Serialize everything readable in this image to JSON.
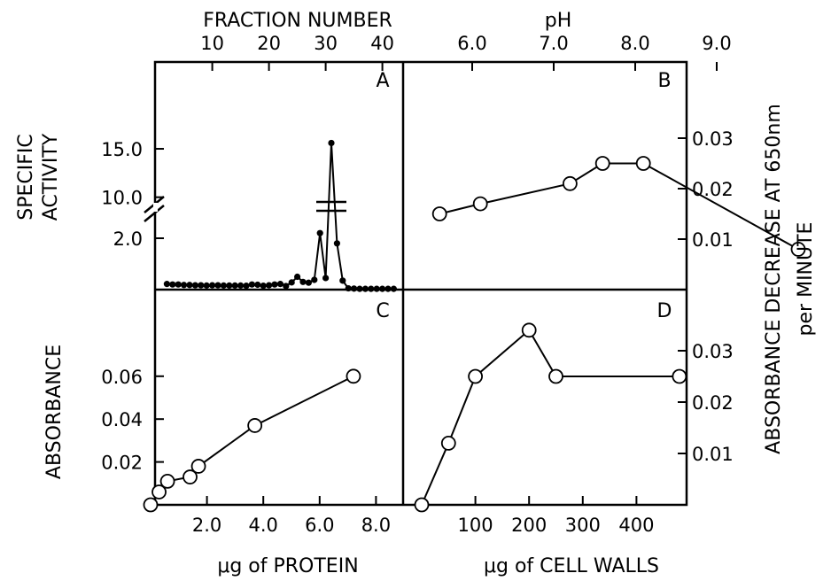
{
  "figure": {
    "top_left_title": "FRACTION NUMBER",
    "top_right_title": "pH",
    "left_top_label_1": "SPECIFIC",
    "left_top_label_2": "ACTIVITY",
    "left_bottom_label": "ABSORBANCE",
    "right_label_1": "ABSORBANCE DECREASE AT 650nm",
    "right_label_2": "per MINUTE",
    "bottom_left_label": "μg of PROTEIN",
    "bottom_right_label": "μg of CELL WALLS",
    "colors": {
      "line": "#000000",
      "open_marker_fill": "#ffffff",
      "filled_marker": "#000000"
    }
  },
  "chart_data": [
    {
      "panel": "A",
      "type": "line",
      "marker": "filled-circle",
      "xlabel": "FRACTION NUMBER",
      "ylabel": "SPECIFIC ACTIVITY",
      "x_ticks": [
        "10",
        "20",
        "30",
        "40"
      ],
      "y_ticks": [
        "2.0",
        "10.0",
        "15.0"
      ],
      "y_axis_break": true,
      "x": [
        2,
        3,
        4,
        5,
        6,
        7,
        8,
        9,
        10,
        11,
        12,
        13,
        14,
        15,
        16,
        17,
        18,
        19,
        20,
        21,
        22,
        23,
        24,
        25,
        26,
        27,
        28,
        29,
        30,
        31,
        32,
        33,
        34,
        35,
        36,
        37,
        38,
        39,
        40,
        41,
        42
      ],
      "y": [
        0.22,
        0.2,
        0.2,
        0.18,
        0.18,
        0.17,
        0.17,
        0.16,
        0.17,
        0.17,
        0.16,
        0.16,
        0.16,
        0.16,
        0.15,
        0.2,
        0.19,
        0.15,
        0.17,
        0.2,
        0.22,
        0.14,
        0.28,
        0.5,
        0.3,
        0.27,
        0.38,
        2.2,
        0.45,
        15.6,
        1.8,
        0.35,
        0.05,
        0.04,
        0.03,
        0.03,
        0.03,
        0.03,
        0.03,
        0.03,
        0.03
      ]
    },
    {
      "panel": "B",
      "type": "line",
      "marker": "open-circle",
      "xlabel": "pH",
      "ylabel": "ABSORBANCE DECREASE AT 650nm per MINUTE",
      "x_ticks": [
        "6.0",
        "7.0",
        "8.0",
        "9.0"
      ],
      "y_ticks": [
        "0.01",
        "0.02",
        "0.03"
      ],
      "x": [
        5.6,
        6.1,
        7.2,
        7.6,
        8.1,
        10.0
      ],
      "y": [
        0.015,
        0.017,
        0.021,
        0.025,
        0.025,
        0.008
      ]
    },
    {
      "panel": "C",
      "type": "line",
      "marker": "open-circle",
      "xlabel": "μg of PROTEIN",
      "ylabel": "ABSORBANCE",
      "x_ticks": [
        "2.0",
        "4.0",
        "6.0",
        "8.0"
      ],
      "y_ticks": [
        "0.02",
        "0.04",
        "0.06"
      ],
      "x": [
        0.0,
        0.3,
        0.6,
        1.4,
        1.7,
        3.7,
        7.2
      ],
      "y": [
        0.0,
        0.006,
        0.011,
        0.013,
        0.018,
        0.037,
        0.06
      ]
    },
    {
      "panel": "D",
      "type": "line",
      "marker": "open-circle",
      "xlabel": "μg of CELL WALLS",
      "ylabel": "ABSORBANCE DECREASE AT 650nm per MINUTE",
      "x_ticks": [
        "100",
        "200",
        "300",
        "400"
      ],
      "y_ticks": [
        "0.01",
        "0.02",
        "0.03"
      ],
      "x": [
        0,
        50,
        100,
        200,
        250,
        480
      ],
      "y": [
        0.0,
        0.012,
        0.025,
        0.034,
        0.025,
        0.025
      ]
    }
  ]
}
